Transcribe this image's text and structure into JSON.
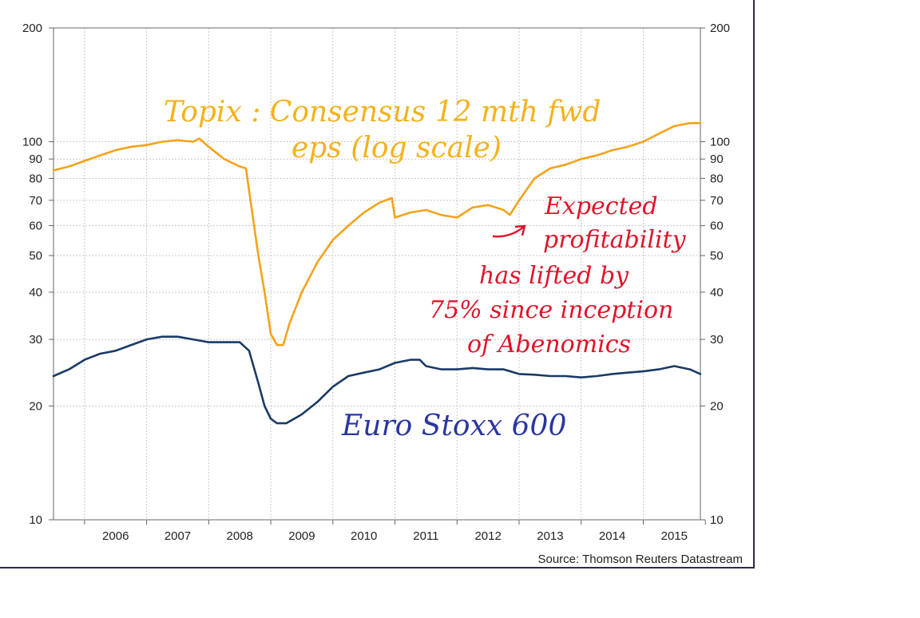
{
  "chart_data": {
    "type": "line",
    "ylim": [
      10,
      200
    ],
    "yscale": "log",
    "y_ticks": [
      10,
      20,
      30,
      40,
      50,
      60,
      70,
      80,
      90,
      100,
      200
    ],
    "x_tick_labels": [
      "2006",
      "2007",
      "2008",
      "2009",
      "2010",
      "2011",
      "2012",
      "2013",
      "2014",
      "2015"
    ],
    "xlim": [
      2005.5,
      2015.92
    ],
    "grid": true,
    "source": "Source: Thomson Reuters Datastream",
    "annotations": {
      "topix": [
        "Topix : Consensus 12 mth fwd",
        "eps (log scale)"
      ],
      "profit": [
        "Expected",
        "profitability",
        "has lifted by",
        "75% since inception",
        "of Abenomics"
      ],
      "euro": "Euro Stoxx 600"
    },
    "colors": {
      "topix": "#f5a31a",
      "euro": "#1a3a66",
      "annotation_topix": "#f5b21c",
      "annotation_profit": "#e0142a",
      "annotation_euro": "#2b36a0",
      "grid": "#c8c8c8"
    },
    "series": [
      {
        "key": "topix",
        "x": [
          2005.5,
          2005.75,
          2006.0,
          2006.25,
          2006.5,
          2006.75,
          2007.0,
          2007.25,
          2007.5,
          2007.75,
          2007.85,
          2008.0,
          2008.25,
          2008.5,
          2008.6,
          2008.7,
          2008.8,
          2008.9,
          2009.0,
          2009.1,
          2009.2,
          2009.3,
          2009.5,
          2009.75,
          2010.0,
          2010.25,
          2010.5,
          2010.75,
          2010.85,
          2010.95,
          2011.0,
          2011.25,
          2011.5,
          2011.75,
          2012.0,
          2012.25,
          2012.5,
          2012.75,
          2012.85,
          2013.0,
          2013.25,
          2013.5,
          2013.75,
          2014.0,
          2014.25,
          2014.5,
          2014.75,
          2015.0,
          2015.25,
          2015.5,
          2015.75,
          2015.92
        ],
        "y": [
          84,
          86,
          89,
          92,
          95,
          97,
          98,
          100,
          101,
          100,
          102,
          97,
          90,
          86,
          85,
          65,
          50,
          40,
          31,
          29,
          29,
          33,
          40,
          48,
          55,
          60,
          65,
          69,
          70,
          71,
          63,
          65,
          66,
          64,
          63,
          67,
          68,
          66,
          64,
          70,
          80,
          85,
          87,
          90,
          92,
          95,
          97,
          100,
          105,
          110,
          112,
          112
        ]
      },
      {
        "key": "euro",
        "x": [
          2005.5,
          2005.75,
          2006.0,
          2006.25,
          2006.5,
          2006.75,
          2007.0,
          2007.25,
          2007.5,
          2007.75,
          2008.0,
          2008.25,
          2008.5,
          2008.65,
          2008.8,
          2008.9,
          2009.0,
          2009.1,
          2009.25,
          2009.5,
          2009.75,
          2010.0,
          2010.25,
          2010.5,
          2010.75,
          2011.0,
          2011.25,
          2011.4,
          2011.5,
          2011.75,
          2012.0,
          2012.25,
          2012.5,
          2012.75,
          2013.0,
          2013.25,
          2013.5,
          2013.75,
          2014.0,
          2014.25,
          2014.5,
          2014.75,
          2015.0,
          2015.25,
          2015.5,
          2015.75,
          2015.92
        ],
        "y": [
          24,
          25,
          26.5,
          27.5,
          28,
          29,
          30,
          30.5,
          30.5,
          30,
          29.5,
          29.5,
          29.5,
          28,
          23,
          20,
          18.5,
          18,
          18,
          19,
          20.5,
          22.5,
          24,
          24.5,
          25,
          26,
          26.5,
          26.5,
          25.5,
          25,
          25,
          25.2,
          25,
          25,
          24.3,
          24.2,
          24,
          24,
          23.8,
          24,
          24.3,
          24.5,
          24.7,
          25,
          25.5,
          25,
          24.3
        ]
      }
    ]
  }
}
